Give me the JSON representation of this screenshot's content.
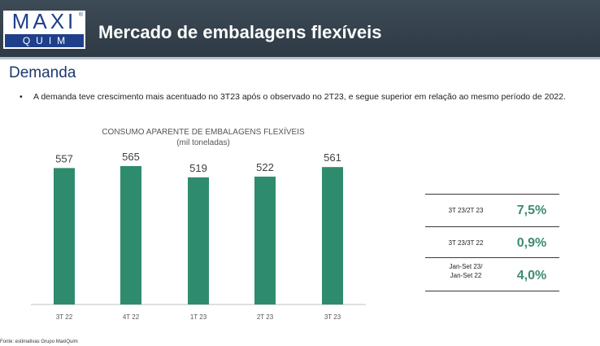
{
  "header": {
    "logo_top": "MAXI",
    "logo_reg": "®",
    "logo_bottom": "QUIM",
    "title": "Mercado de embalagens flexíveis"
  },
  "section": {
    "title": "Demanda"
  },
  "bullet": {
    "marker": "•",
    "text": "A demanda teve crescimento mais acentuado no 3T23 após o observado no 2T23, e segue superior em relação ao mesmo período de 2022."
  },
  "chart_data": {
    "type": "bar",
    "title": "CONSUMO APARENTE DE EMBALAGENS FLEXÍVEIS",
    "subtitle": "(mil toneladas)",
    "categories": [
      "3T 22",
      "4T 22",
      "1T 23",
      "2T 23",
      "3T 23"
    ],
    "values": [
      557,
      565,
      519,
      522,
      561
    ],
    "data_labels": [
      "557",
      "565",
      "519",
      "522",
      "561"
    ],
    "bar_color": "#2e8b6e",
    "value_scale_max": 565
  },
  "kpis": [
    {
      "label": "3T 23/2T 23",
      "value": "7,5%"
    },
    {
      "label": "3T 23/3T 22",
      "value": "0,9%"
    },
    {
      "label_line1": "Jan-Set 23/",
      "label_line2": "Jan-Set 22",
      "value": "4,0%"
    }
  ],
  "footer": {
    "source": "Fonte: estimativas Grupo MaxiQuim"
  },
  "colors": {
    "header_bg": "#2e3a45",
    "logo_blue": "#1f3f8a",
    "section_title": "#1b3a6d",
    "kpi_value": "#3e8c6e"
  }
}
